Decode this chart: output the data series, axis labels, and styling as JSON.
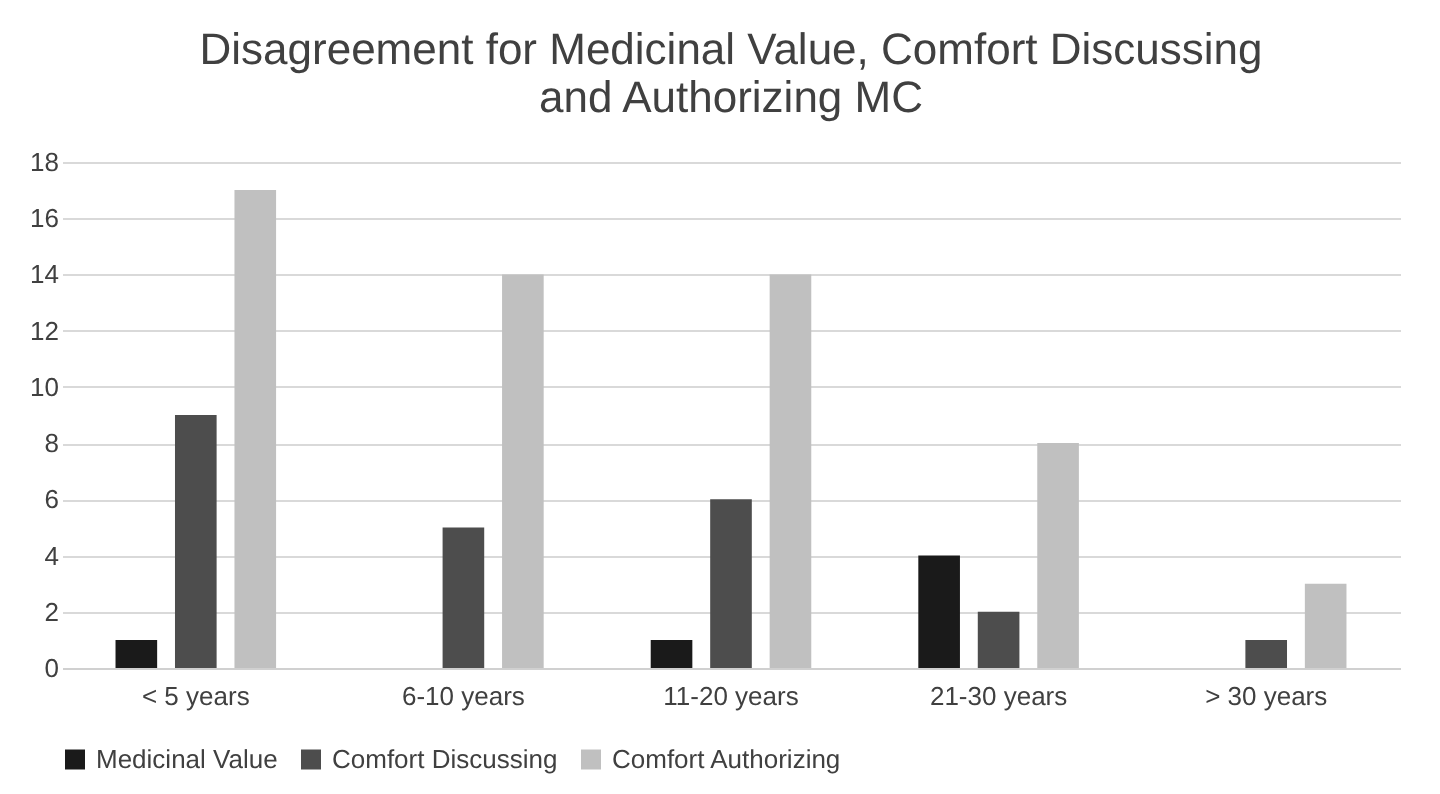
{
  "chart_data": {
    "type": "bar",
    "title": "Disagreement for Medicinal Value, Comfort Discussing and Authorizing MC",
    "categories": [
      "< 5 years",
      "6-10 years",
      "11-20 years",
      "21-30 years",
      "> 30 years"
    ],
    "series": [
      {
        "name": "Medicinal Value",
        "color": "#1a1a1a",
        "values": [
          1,
          0,
          1,
          4,
          0
        ]
      },
      {
        "name": "Comfort Discussing",
        "color": "#4d4d4d",
        "values": [
          9,
          5,
          6,
          2,
          1
        ]
      },
      {
        "name": "Comfort Authorizing",
        "color": "#c0c0c0",
        "values": [
          17,
          14,
          14,
          8,
          3
        ]
      }
    ],
    "ylim": [
      0,
      18
    ],
    "yticks": [
      0,
      2,
      4,
      6,
      8,
      10,
      12,
      14,
      16,
      18
    ],
    "grid": "y",
    "legend": "bottom"
  }
}
